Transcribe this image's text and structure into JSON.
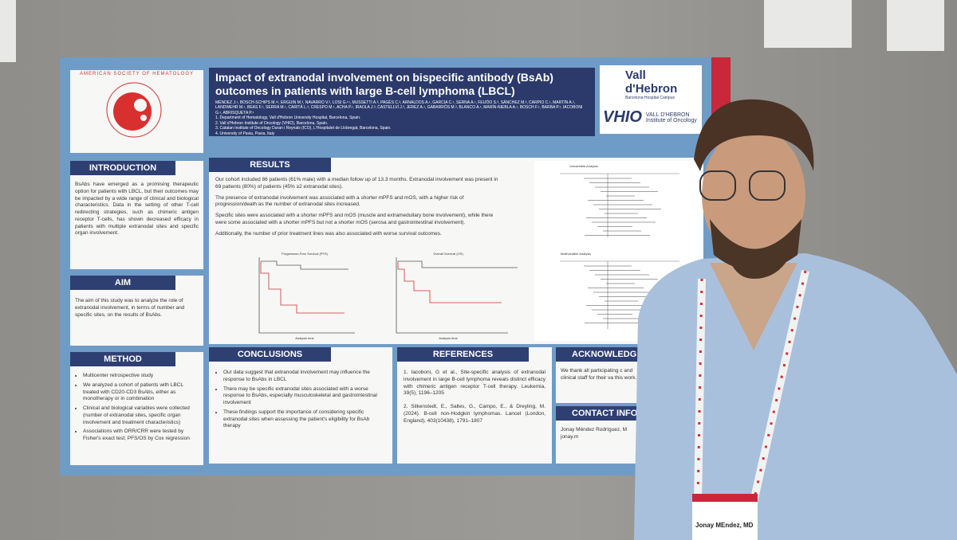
{
  "poster": {
    "society": "AMERICAN SOCIETY OF HEMATOLOGY",
    "title": "Impact of extranodal involvement on bispecific antibody (BsAb) outcomes in patients with large B-cell lymphoma (LBCL)",
    "authors": "MÉNDEZ J.¹, BOSCH-SCHIPS M.¹², ERGUIN M.³, NAVARRO V.³, LOSI G.¹⁴, MUSSETTI A.³, PAGÈS C.³, ARNALDOS A.¹, GARCIA C.¹, SERNA A.¹, FEIJÓO S.³, SÁNCHEZ M.³, CARPIO C.¹, MARTÍN A.³, LANDWEHR M.¹, BEAS F.¹, SERRA M.¹, CARITÁ L.³, CRESPO M.¹, ACHA P.¹, IRAOLA J.³, CASTELLVÍ J.³, JEREZ A.¹, GABARRÓS M.³, BLANCO A.¹, MARÍN-NIEBLA A.¹, BOSCH F.¹, BARBA P.¹, IACOBONI G.¹, ABRISQUETA P.¹",
    "affiliations": [
      "1. Department of Hematology, Vall d'Hebron University Hospital, Barcelona, Spain.",
      "2. Vall d'Hebron Institute of Oncology (VHIO), Barcelona, Spain.",
      "3. Catalan Institute of Oncology Duran i Reynals (ICO), L'Hospitalet de Llobregat, Barcelona, Spain.",
      "4. University of Pavia, Pavia, Italy"
    ],
    "logo_main": "Vall d'Hebron",
    "logo_sub": "Barcelona Hospital Campus",
    "logo_vhio": "VHIO",
    "logo_vhio_text": "VALL D'HEBRON Institute of Oncology",
    "introduction": {
      "heading": "INTRODUCTION",
      "text": "BsAbs have emerged as a promising therapeutic option for patients with LBCL, but their outcomes may be impacted by a wide range of clinical and biological characteristics. Data in the setting of other T-cell redirecting strategies, such as chimeric antigen receptor T-cells, has shown decreased efficacy in patients with multiple extranodal sites and specific organ involvement."
    },
    "aim": {
      "heading": "AIM",
      "text": "The aim of this study was to analyze the role of extranodal involvement, in terms of number and specific sites, on the results of BsAbs."
    },
    "method": {
      "heading": "METHOD",
      "items": [
        "Multicenter retrospective study",
        "We analyzed a cohort of patients with LBCL treated with CD20-CD3 BsAbs, either as monotherapy or in combination",
        "Clinical and biological variables were collected (number of extranodal sites, specific organ involvement and treatment characteristics)",
        "Associations with ORR/CRR were tested by Fisher's exact test; PFS/OS by Cox regression"
      ]
    },
    "results": {
      "heading": "RESULTS",
      "paragraphs": [
        "Our cohort included 86 patients (61% male) with a median follow up of 13.3 months. Extranodal involvement was present in 69 patients (80%) of patients (45% ≥2 extranodal sites).",
        "The presence of extranodal involvement was associated with a shorter mPFS and mOS, with a higher risk of progression/death as the number of extranodal sites increased.",
        "Specific sites were associated with a shorter mPFS and mOS (muscle and extramedullary bone involvement), while there were some associated with a shorter mPFS but not a shorter mOS (serosa and gastrointestinal involvement).",
        "Additionally, the number of prior treatment lines was also associated with worse survival outcomes."
      ],
      "plot_titles": [
        "Progression-Free Survival (PFS)",
        "Overall Survival (OS)"
      ],
      "forest_titles": [
        "Univariable Analysis",
        "Multivariable Analysis"
      ],
      "axis_label": "Analysis time"
    },
    "conclusions": {
      "heading": "CONCLUSIONS",
      "items": [
        "Our data suggest that extranodal involvement may influence the response to BsAbs in LBCL",
        "There may be specific extranodal sites associated with a worse response to BsAbs, especially musculoskeletal and gastrointestinal involvement",
        "These findings support the importance of considering specific extranodal sites when assessing the patient's eligibility for BsAb therapy"
      ]
    },
    "references": {
      "heading": "REFERENCES",
      "items": [
        "1. Iacoboni, G et al., Site-specific analysis of extranodal involvement in large B-cell lymphoma reveals distinct efficacy with chimeric antigen receptor T-cell therapy. Leukemia, 39(5), 1196–1205",
        "2. Silkenstedt, E., Salles, G., Campo, E., & Dreyling, M. (2024). B-cell non-Hodgkin lymphomas. Lancet (London, England), 403(10438), 1791–1807"
      ]
    },
    "acknowledgements": {
      "heading": "ACKNOWLEDG",
      "text": "We thank all participating c and clinical staff for their va this work."
    },
    "contact": {
      "heading": "CONTACT INFO",
      "text": "Jonay Méndez Rodríguez, M jonay.m"
    }
  },
  "badge": {
    "name": "Jonay MEndez, MD"
  }
}
